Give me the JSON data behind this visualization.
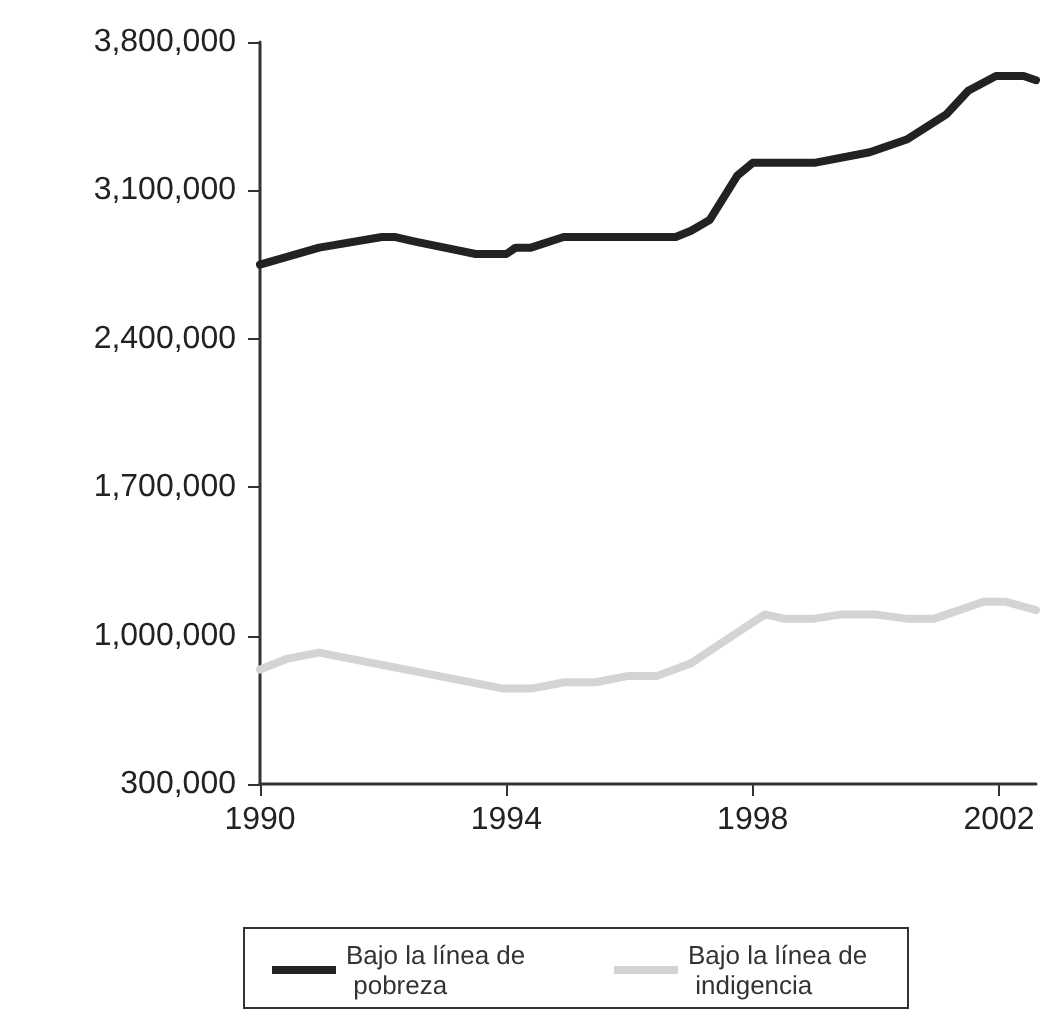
{
  "chart_data": {
    "type": "line",
    "xlim": [
      1990,
      2002.6
    ],
    "xticks": [
      1990,
      1994,
      1998,
      2002
    ],
    "ylim": [
      300000,
      3800000
    ],
    "yticks": [
      {
        "value": 300000,
        "label": "300,000"
      },
      {
        "value": 1000000,
        "label": "1,000,000"
      },
      {
        "value": 1700000,
        "label": "1,700,000"
      },
      {
        "value": 2400000,
        "label": "2,400,000"
      },
      {
        "value": 3100000,
        "label": "3,100,000"
      },
      {
        "value": 3800000,
        "label": "3,800,000"
      }
    ],
    "grid": false,
    "legend": "bottom",
    "marker": "none",
    "line_style": "solid",
    "series": [
      {
        "name": "Bajo la línea de pobreza",
        "color": "#222222",
        "x": [
          1990,
          1990.96,
          1991.98,
          1992.2,
          1992.5,
          1993.5,
          1994,
          1994.15,
          1994.4,
          1994.93,
          1996.75,
          1997,
          1997.3,
          1997.75,
          1998,
          1999,
          1999.9,
          2000.5,
          2001.15,
          2001.5,
          2001.95,
          2002.4,
          2002.6
        ],
        "values": [
          2750000,
          2830000,
          2880000,
          2880000,
          2860000,
          2800000,
          2800000,
          2830000,
          2830000,
          2880000,
          2880000,
          2910000,
          2960000,
          3170000,
          3230000,
          3230000,
          3280000,
          3340000,
          3460000,
          3570000,
          3640000,
          3640000,
          3620000
        ]
      },
      {
        "name": "Bajo la línea de indigencia",
        "color": "#d4d4d4",
        "x": [
          1990,
          1990.43,
          1990.96,
          1993.95,
          1994.4,
          1994.95,
          1995.45,
          1995.98,
          1996.45,
          1997,
          1998.2,
          1998.5,
          1999,
          1999.45,
          1999.98,
          2000.5,
          2000.95,
          2001.75,
          2002.1,
          2002.6
        ],
        "values": [
          840000,
          890000,
          920000,
          750000,
          750000,
          780000,
          780000,
          810000,
          810000,
          870000,
          1100000,
          1080000,
          1080000,
          1100000,
          1100000,
          1080000,
          1080000,
          1160000,
          1160000,
          1120000
        ]
      }
    ]
  }
}
